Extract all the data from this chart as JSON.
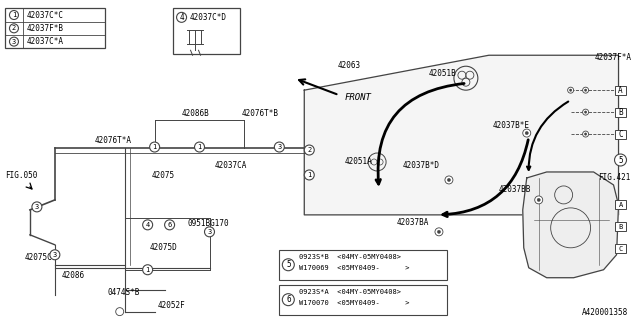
{
  "bg_color": "#ffffff",
  "line_color": "#444444",
  "thick_line_color": "#000000",
  "fig_number": "A420001358",
  "legend_items": [
    {
      "num": "1",
      "part": "42037C*C"
    },
    {
      "num": "2",
      "part": "42037F*B"
    },
    {
      "num": "3",
      "part": "42037C*A"
    }
  ],
  "callout4_label": "42037C*D",
  "note_boxes": [
    {
      "circle_num": "5",
      "line1": "0923S*B  <04MY-05MY0408>",
      "line2": "W170069  <05MY0409-      >"
    },
    {
      "circle_num": "6",
      "line1": "0923S*A  <04MY-05MY0408>",
      "line2": "W170070  <05MY0409-      >"
    }
  ]
}
